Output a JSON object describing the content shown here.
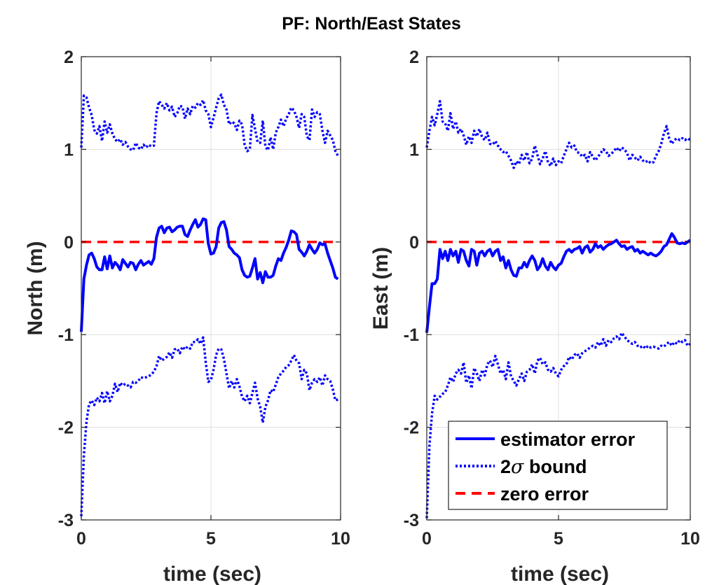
{
  "figure": {
    "title": "PF: North/East States"
  },
  "colors": {
    "estimate": "#0000ff",
    "bound": "#0000ff",
    "zero": "#ff0000",
    "grid": "#dfdfdf",
    "axis": "#262626"
  },
  "legend": {
    "placement": "bottom-right of right panel",
    "entries": [
      "estimator error",
      "2σ bound",
      "zero error"
    ],
    "bound_prefix": "2",
    "bound_symbol": "σ",
    "bound_suffix": " bound"
  },
  "chart_data": [
    {
      "type": "line",
      "title": "",
      "xlabel": "time (sec)",
      "ylabel": "North (m)",
      "xlim": [
        0,
        10
      ],
      "ylim": [
        -3,
        2
      ],
      "xticks": [
        "0",
        "5",
        "10"
      ],
      "yticks": [
        "-3",
        "-2",
        "-1",
        "0",
        "1",
        "2"
      ],
      "grid": true,
      "x": [
        0,
        0.1,
        0.2,
        0.3,
        0.4,
        0.5,
        0.6,
        0.7,
        0.8,
        0.9,
        1.0,
        1.1,
        1.2,
        1.3,
        1.4,
        1.5,
        1.6,
        1.7,
        1.8,
        1.9,
        2.0,
        2.1,
        2.2,
        2.3,
        2.4,
        2.5,
        2.6,
        2.7,
        2.8,
        2.9,
        3.0,
        3.1,
        3.2,
        3.3,
        3.4,
        3.5,
        3.6,
        3.7,
        3.8,
        3.9,
        4.0,
        4.1,
        4.2,
        4.3,
        4.4,
        4.5,
        4.6,
        4.7,
        4.8,
        4.9,
        5.0,
        5.1,
        5.2,
        5.3,
        5.4,
        5.5,
        5.6,
        5.7,
        5.8,
        5.9,
        6.0,
        6.1,
        6.2,
        6.3,
        6.4,
        6.5,
        6.6,
        6.7,
        6.8,
        6.9,
        7.0,
        7.1,
        7.2,
        7.3,
        7.4,
        7.5,
        7.6,
        7.7,
        7.8,
        7.9,
        8.0,
        8.1,
        8.2,
        8.3,
        8.4,
        8.5,
        8.6,
        8.7,
        8.8,
        8.9,
        9.0,
        9.1,
        9.2,
        9.3,
        9.4,
        9.5,
        9.6,
        9.7,
        9.8,
        9.9
      ],
      "series": [
        {
          "name": "estimator error",
          "style": "solid",
          "values": [
            -0.97,
            -0.4,
            -0.25,
            -0.14,
            -0.12,
            -0.18,
            -0.27,
            -0.3,
            -0.3,
            -0.16,
            -0.29,
            -0.15,
            -0.28,
            -0.22,
            -0.25,
            -0.3,
            -0.19,
            -0.23,
            -0.27,
            -0.22,
            -0.23,
            -0.3,
            -0.24,
            -0.2,
            -0.25,
            -0.23,
            -0.21,
            -0.24,
            -0.18,
            0.05,
            0.15,
            0.17,
            0.1,
            0.15,
            0.16,
            0.11,
            0.13,
            0.16,
            0.17,
            0.17,
            0.08,
            0.06,
            0.13,
            0.19,
            0.24,
            0.16,
            0.19,
            0.25,
            0.24,
            -0.02,
            -0.13,
            -0.12,
            -0.05,
            0.15,
            0.21,
            0.22,
            0.13,
            -0.05,
            -0.08,
            -0.12,
            -0.14,
            -0.17,
            -0.3,
            -0.36,
            -0.38,
            -0.37,
            -0.28,
            -0.18,
            -0.4,
            -0.33,
            -0.44,
            -0.32,
            -0.38,
            -0.38,
            -0.36,
            -0.26,
            -0.18,
            -0.2,
            -0.12,
            -0.06,
            0.02,
            0.12,
            0.11,
            0.08,
            -0.08,
            -0.11,
            -0.15,
            -0.1,
            -0.03,
            -0.08,
            -0.12,
            -0.08,
            -0.01,
            -0.03,
            -0.02,
            -0.12,
            -0.2,
            -0.28,
            -0.38,
            -0.4
          ]
        },
        {
          "name": "2σ bound",
          "style": "dotted",
          "values": [
            1.02,
            1.58,
            1.56,
            1.45,
            1.37,
            1.21,
            1.17,
            1.25,
            1.09,
            1.3,
            1.18,
            1.27,
            1.17,
            1.11,
            1.08,
            1.11,
            1.05,
            1.08,
            1.03,
            1.0,
            0.99,
            1.07,
            1.02,
            1.0,
            1.05,
            1.02,
            1.05,
            1.03,
            1.04,
            1.39,
            1.52,
            1.48,
            1.44,
            1.5,
            1.42,
            1.46,
            1.35,
            1.39,
            1.47,
            1.46,
            1.33,
            1.44,
            1.38,
            1.47,
            1.45,
            1.5,
            1.48,
            1.53,
            1.42,
            1.38,
            1.24,
            1.34,
            1.45,
            1.55,
            1.59,
            1.48,
            1.43,
            1.27,
            1.3,
            1.28,
            1.21,
            1.31,
            1.27,
            1.05,
            0.98,
            1.0,
            1.37,
            1.22,
            1.08,
            1.07,
            1.31,
            1.03,
            0.99,
            1.13,
            1.0,
            1.18,
            1.24,
            1.32,
            1.25,
            1.33,
            1.38,
            1.45,
            1.42,
            1.35,
            1.23,
            1.38,
            1.35,
            1.14,
            1.1,
            1.43,
            1.35,
            1.4,
            1.38,
            1.2,
            1.07,
            1.2,
            1.15,
            1.1,
            0.98,
            0.93
          ]
        },
        {
          "name": "2σ bound (lower)",
          "style": "dotted",
          "values": [
            -2.96,
            -2.3,
            -1.94,
            -1.75,
            -1.71,
            -1.76,
            -1.68,
            -1.72,
            -1.63,
            -1.74,
            -1.61,
            -1.72,
            -1.66,
            -1.53,
            -1.62,
            -1.52,
            -1.55,
            -1.53,
            -1.55,
            -1.57,
            -1.51,
            -1.52,
            -1.5,
            -1.46,
            -1.47,
            -1.46,
            -1.45,
            -1.43,
            -1.4,
            -1.34,
            -1.23,
            -1.28,
            -1.26,
            -1.24,
            -1.19,
            -1.25,
            -1.16,
            -1.15,
            -1.2,
            -1.13,
            -1.16,
            -1.13,
            -1.15,
            -1.08,
            -1.08,
            -1.05,
            -1.1,
            -1.03,
            -1.3,
            -1.51,
            -1.49,
            -1.38,
            -1.22,
            -1.15,
            -1.16,
            -1.26,
            -1.42,
            -1.58,
            -1.5,
            -1.57,
            -1.48,
            -1.56,
            -1.67,
            -1.72,
            -1.66,
            -1.74,
            -1.63,
            -1.52,
            -1.69,
            -1.78,
            -1.95,
            -1.78,
            -1.71,
            -1.6,
            -1.62,
            -1.54,
            -1.46,
            -1.42,
            -1.39,
            -1.35,
            -1.33,
            -1.28,
            -1.22,
            -1.28,
            -1.31,
            -1.48,
            -1.38,
            -1.42,
            -1.6,
            -1.52,
            -1.48,
            -1.51,
            -1.46,
            -1.55,
            -1.44,
            -1.48,
            -1.5,
            -1.59,
            -1.71,
            -1.7
          ]
        },
        {
          "name": "zero error",
          "style": "dashed",
          "values": [
            0,
            0,
            0,
            0,
            0,
            0,
            0,
            0,
            0,
            0,
            0,
            0,
            0,
            0,
            0,
            0,
            0,
            0,
            0,
            0,
            0,
            0,
            0,
            0,
            0,
            0,
            0,
            0,
            0,
            0,
            0,
            0,
            0,
            0,
            0,
            0,
            0,
            0,
            0,
            0,
            0,
            0,
            0,
            0,
            0,
            0,
            0,
            0,
            0,
            0,
            0,
            0,
            0,
            0,
            0,
            0,
            0,
            0,
            0,
            0,
            0,
            0,
            0,
            0,
            0,
            0,
            0,
            0,
            0,
            0,
            0,
            0,
            0,
            0,
            0,
            0,
            0,
            0,
            0,
            0,
            0,
            0,
            0,
            0,
            0,
            0,
            0,
            0,
            0,
            0,
            0,
            0,
            0,
            0,
            0,
            0,
            0,
            0,
            0,
            0
          ]
        }
      ]
    },
    {
      "type": "line",
      "title": "",
      "xlabel": "time (sec)",
      "ylabel": "East (m)",
      "xlim": [
        0,
        10
      ],
      "ylim": [
        -3,
        2
      ],
      "xticks": [
        "0",
        "5",
        "10"
      ],
      "yticks": [
        "-3",
        "-2",
        "-1",
        "0",
        "1",
        "2"
      ],
      "grid": true,
      "x": [
        0,
        0.1,
        0.2,
        0.3,
        0.4,
        0.5,
        0.6,
        0.7,
        0.8,
        0.9,
        1.0,
        1.1,
        1.2,
        1.3,
        1.4,
        1.5,
        1.6,
        1.7,
        1.8,
        1.9,
        2.0,
        2.1,
        2.2,
        2.3,
        2.4,
        2.5,
        2.6,
        2.7,
        2.8,
        2.9,
        3.0,
        3.1,
        3.2,
        3.3,
        3.4,
        3.5,
        3.6,
        3.7,
        3.8,
        3.9,
        4.0,
        4.1,
        4.2,
        4.3,
        4.4,
        4.5,
        4.6,
        4.7,
        4.8,
        4.9,
        5.0,
        5.1,
        5.2,
        5.3,
        5.4,
        5.5,
        5.6,
        5.7,
        5.8,
        5.9,
        6.0,
        6.1,
        6.2,
        6.3,
        6.4,
        6.5,
        6.6,
        6.7,
        6.8,
        6.9,
        7.0,
        7.1,
        7.2,
        7.3,
        7.4,
        7.5,
        7.6,
        7.7,
        7.8,
        7.9,
        8.0,
        8.1,
        8.2,
        8.3,
        8.4,
        8.5,
        8.6,
        8.7,
        8.8,
        8.9,
        9.0,
        9.1,
        9.2,
        9.3,
        9.4,
        9.5,
        9.6,
        9.7,
        9.8,
        9.9,
        10.0
      ],
      "series": [
        {
          "name": "estimator error",
          "style": "solid",
          "values": [
            -0.98,
            -0.7,
            -0.45,
            -0.45,
            -0.4,
            -0.08,
            -0.18,
            -0.1,
            -0.2,
            -0.08,
            -0.15,
            -0.1,
            -0.22,
            -0.08,
            -0.1,
            -0.2,
            -0.26,
            -0.08,
            -0.1,
            -0.25,
            -0.12,
            -0.1,
            -0.15,
            -0.1,
            -0.08,
            -0.15,
            -0.1,
            -0.08,
            -0.2,
            -0.16,
            -0.28,
            -0.2,
            -0.3,
            -0.36,
            -0.37,
            -0.28,
            -0.28,
            -0.22,
            -0.27,
            -0.2,
            -0.15,
            -0.2,
            -0.3,
            -0.26,
            -0.18,
            -0.26,
            -0.3,
            -0.22,
            -0.27,
            -0.3,
            -0.25,
            -0.23,
            -0.16,
            -0.1,
            -0.08,
            -0.11,
            -0.08,
            -0.07,
            -0.05,
            -0.12,
            -0.06,
            -0.04,
            -0.11,
            -0.08,
            -0.02,
            -0.06,
            -0.04,
            -0.08,
            -0.05,
            -0.03,
            -0.02,
            0.0,
            0.02,
            -0.02,
            -0.05,
            -0.04,
            -0.08,
            -0.06,
            -0.05,
            -0.1,
            -0.08,
            -0.12,
            -0.1,
            -0.12,
            -0.14,
            -0.12,
            -0.14,
            -0.15,
            -0.13,
            -0.1,
            -0.05,
            -0.03,
            0.03,
            0.09,
            0.05,
            -0.01,
            -0.02,
            -0.01,
            -0.02,
            0.0,
            0.02
          ]
        },
        {
          "name": "2σ bound",
          "style": "dotted",
          "values": [
            1.02,
            1.2,
            1.35,
            1.26,
            1.38,
            1.52,
            1.3,
            1.28,
            1.2,
            1.39,
            1.22,
            1.3,
            1.18,
            1.22,
            1.15,
            1.05,
            1.14,
            1.07,
            1.2,
            1.14,
            1.22,
            1.13,
            1.1,
            1.18,
            1.06,
            1.05,
            1.09,
            1.04,
            1.0,
            0.97,
            0.98,
            0.93,
            0.88,
            0.8,
            0.87,
            0.84,
            0.94,
            0.88,
            0.97,
            0.85,
            0.9,
            1.04,
            0.94,
            0.84,
            0.9,
            0.98,
            0.86,
            0.82,
            0.9,
            0.83,
            0.87,
            0.85,
            0.93,
            1.0,
            1.07,
            1.02,
            1.04,
            0.97,
            0.96,
            0.92,
            0.94,
            0.87,
            0.97,
            0.92,
            0.88,
            0.92,
            0.96,
            1.0,
            0.98,
            0.93,
            0.95,
            0.98,
            1.02,
            0.98,
            1.02,
            1.0,
            0.96,
            0.88,
            0.94,
            0.91,
            0.88,
            0.92,
            0.88,
            0.86,
            0.88,
            0.85,
            0.86,
            0.93,
            0.98,
            1.06,
            1.17,
            1.25,
            1.12,
            1.06,
            1.1,
            1.12,
            1.1,
            1.12,
            1.1,
            1.12,
            1.1
          ]
        },
        {
          "name": "2σ bound (lower)",
          "style": "dotted",
          "values": [
            -2.98,
            -2.2,
            -1.85,
            -1.66,
            -1.7,
            -1.67,
            -1.64,
            -1.62,
            -1.55,
            -1.46,
            -1.51,
            -1.42,
            -1.38,
            -1.42,
            -1.3,
            -1.52,
            -1.44,
            -1.58,
            -1.36,
            -1.42,
            -1.5,
            -1.38,
            -1.44,
            -1.32,
            -1.28,
            -1.35,
            -1.23,
            -1.32,
            -1.42,
            -1.38,
            -1.48,
            -1.3,
            -1.45,
            -1.5,
            -1.55,
            -1.48,
            -1.42,
            -1.5,
            -1.4,
            -1.38,
            -1.32,
            -1.42,
            -1.28,
            -1.25,
            -1.32,
            -1.3,
            -1.38,
            -1.4,
            -1.36,
            -1.42,
            -1.45,
            -1.38,
            -1.34,
            -1.32,
            -1.24,
            -1.27,
            -1.22,
            -1.2,
            -1.25,
            -1.2,
            -1.18,
            -1.16,
            -1.14,
            -1.12,
            -1.14,
            -1.08,
            -1.12,
            -1.05,
            -1.12,
            -1.06,
            -1.08,
            -1.04,
            -1.02,
            -1.05,
            -0.98,
            -1.02,
            -1.06,
            -1.08,
            -1.1,
            -1.08,
            -1.12,
            -1.14,
            -1.12,
            -1.15,
            -1.12,
            -1.14,
            -1.13,
            -1.14,
            -1.15,
            -1.12,
            -1.13,
            -1.1,
            -1.08,
            -1.12,
            -1.08,
            -1.1,
            -1.06,
            -1.08,
            -1.06,
            -1.12,
            -1.1
          ]
        },
        {
          "name": "zero error",
          "style": "dashed",
          "values": [
            0,
            0,
            0,
            0,
            0,
            0,
            0,
            0,
            0,
            0,
            0,
            0,
            0,
            0,
            0,
            0,
            0,
            0,
            0,
            0,
            0,
            0,
            0,
            0,
            0,
            0,
            0,
            0,
            0,
            0,
            0,
            0,
            0,
            0,
            0,
            0,
            0,
            0,
            0,
            0,
            0,
            0,
            0,
            0,
            0,
            0,
            0,
            0,
            0,
            0,
            0,
            0,
            0,
            0,
            0,
            0,
            0,
            0,
            0,
            0,
            0,
            0,
            0,
            0,
            0,
            0,
            0,
            0,
            0,
            0,
            0,
            0,
            0,
            0,
            0,
            0,
            0,
            0,
            0,
            0,
            0,
            0,
            0,
            0,
            0,
            0,
            0,
            0,
            0,
            0,
            0,
            0,
            0,
            0,
            0,
            0,
            0,
            0,
            0,
            0,
            0
          ]
        }
      ]
    }
  ]
}
